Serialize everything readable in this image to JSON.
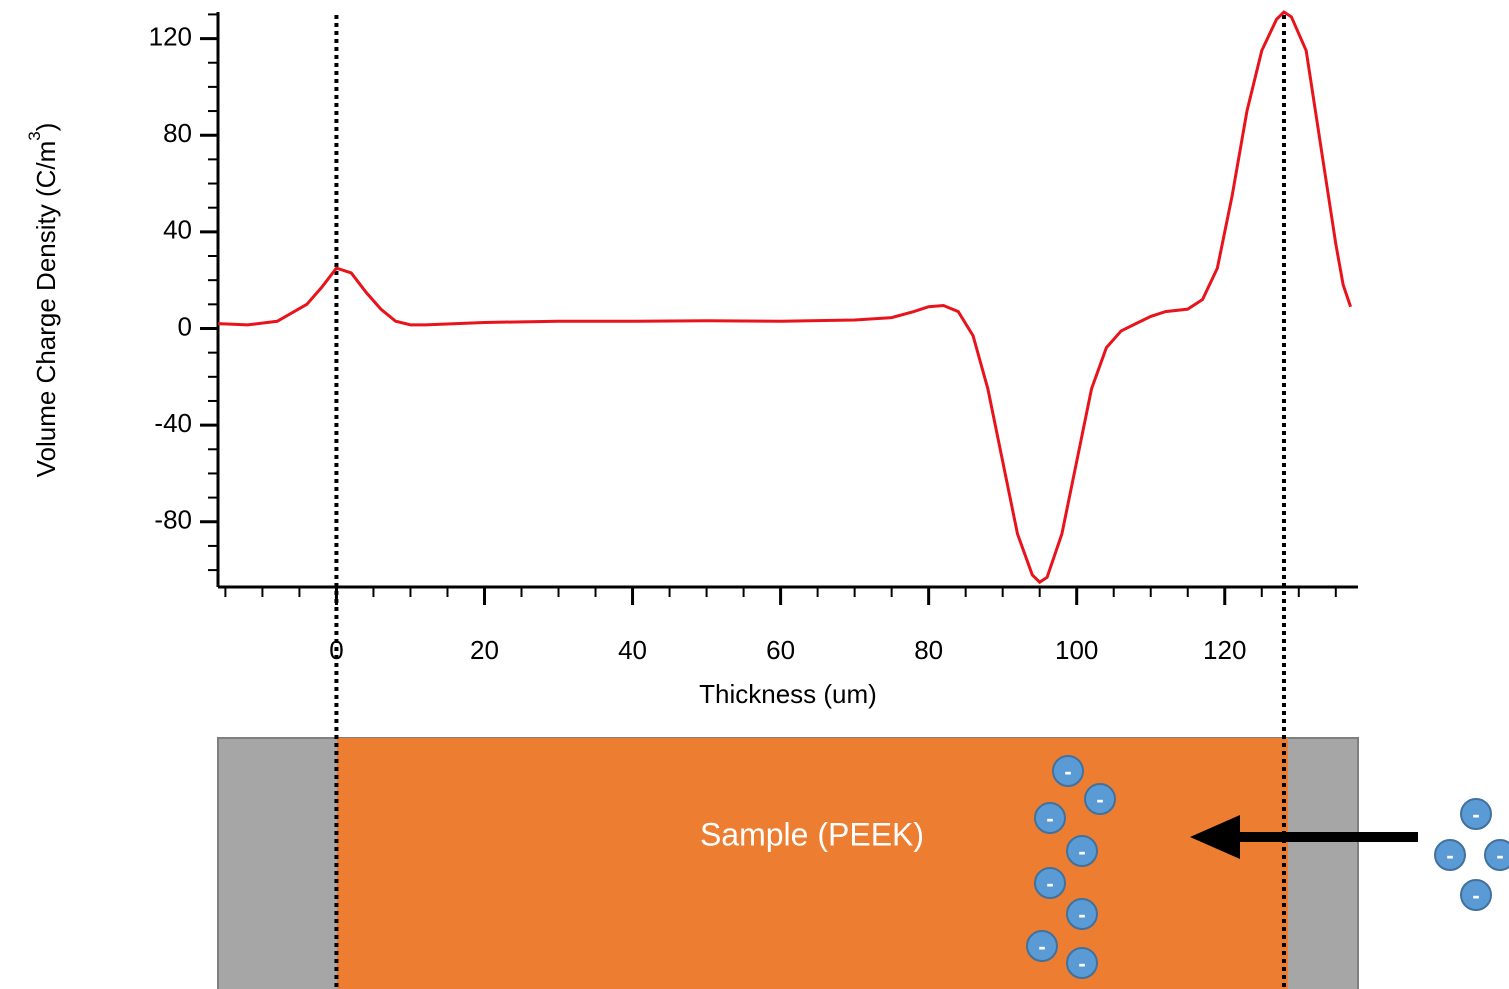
{
  "chart_data": {
    "type": "line",
    "x_label": "Thickness (um)",
    "y_label": "Volume Charge Density (C/m",
    "y_label_sup": "3",
    "y_label_end": ")",
    "xlim": [
      -16,
      138
    ],
    "ylim": [
      -107,
      131
    ],
    "xticks": [
      0,
      20,
      40,
      60,
      80,
      100,
      120
    ],
    "yticks": [
      -80,
      -40,
      0,
      40,
      80,
      120
    ],
    "xminorticks": [
      -15,
      -10,
      -5,
      5,
      10,
      15,
      25,
      30,
      35,
      45,
      50,
      55,
      65,
      70,
      75,
      85,
      90,
      95,
      105,
      110,
      115,
      125,
      130,
      135
    ],
    "yminorticks": [
      -100,
      -90,
      -70,
      -60,
      -50,
      -30,
      -20,
      -10,
      10,
      20,
      30,
      50,
      60,
      70,
      90,
      100,
      110,
      130
    ],
    "reference_lines": [
      0,
      128
    ],
    "series": [
      {
        "color": "#e8131b",
        "x": [
          -16,
          -12,
          -8,
          -4,
          -2,
          0,
          2,
          4,
          6,
          8,
          10,
          12,
          20,
          30,
          40,
          50,
          60,
          70,
          75,
          78,
          80,
          82,
          84,
          86,
          88,
          90,
          92,
          94,
          95,
          96,
          98,
          100,
          102,
          104,
          106,
          108,
          110,
          112,
          115,
          117,
          119,
          121,
          123,
          125,
          127,
          128,
          129,
          131,
          133,
          135,
          136,
          137
        ],
        "values": [
          2,
          1.5,
          3,
          10,
          17,
          25,
          23,
          15,
          8,
          3,
          1.5,
          1.5,
          2.5,
          3,
          3,
          3.2,
          3,
          3.5,
          4.5,
          7,
          9,
          9.5,
          7,
          -3,
          -25,
          -55,
          -85,
          -102,
          -105,
          -103,
          -85,
          -55,
          -25,
          -8,
          -1,
          2,
          5,
          7,
          8,
          12,
          25,
          55,
          90,
          115,
          128,
          131,
          129,
          115,
          75,
          35,
          18,
          9
        ]
      }
    ]
  },
  "diagram": {
    "sample_label": "Sample (PEEK)",
    "electron_label": "-"
  }
}
